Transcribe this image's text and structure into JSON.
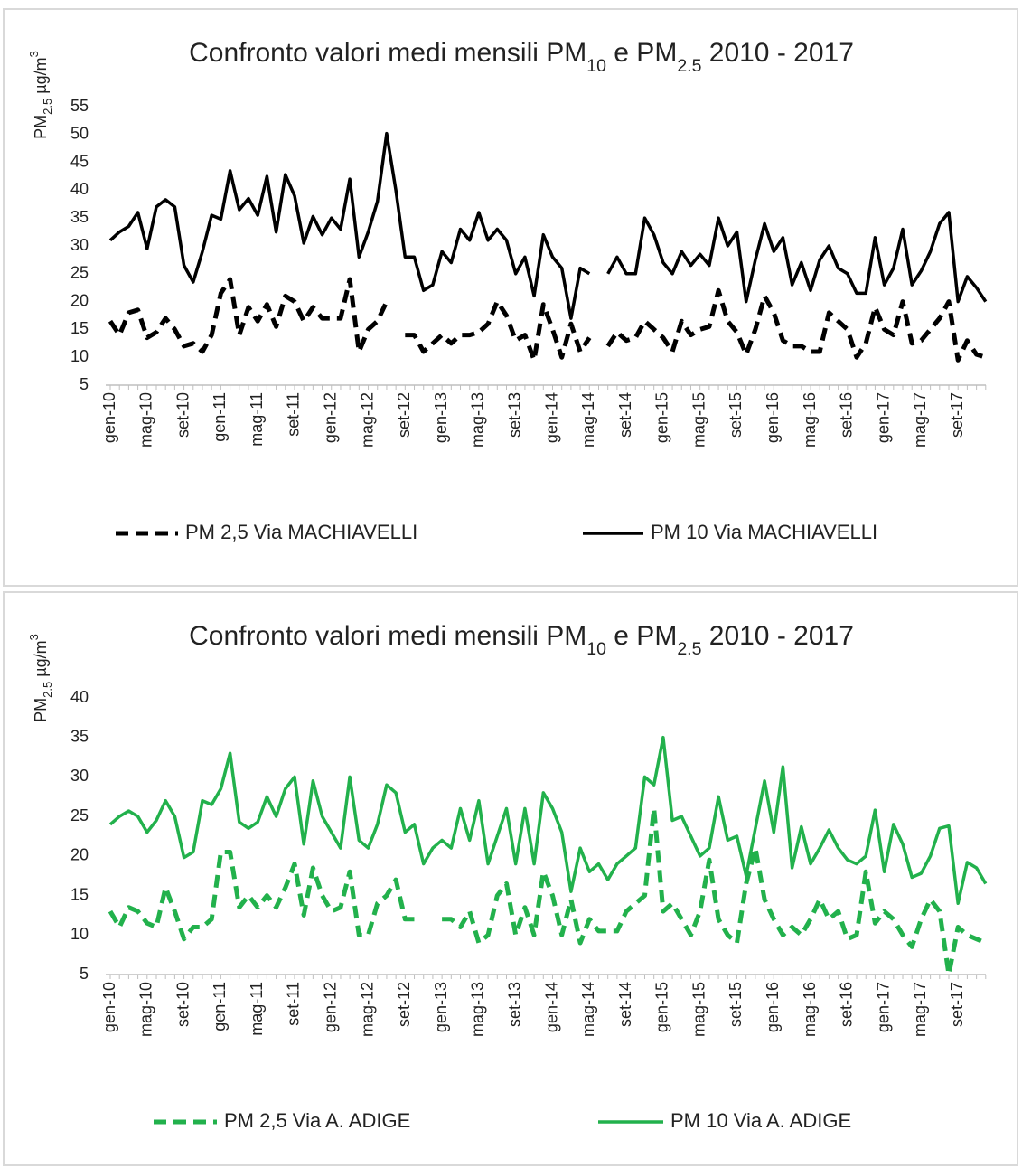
{
  "chart_data": [
    {
      "type": "line",
      "title": [
        {
          "text": "Confronto valori medi mensili PM"
        },
        {
          "text": "10",
          "sub": true
        },
        {
          "text": " e PM"
        },
        {
          "text": "2.5",
          "sub": true
        },
        {
          "text": " 2010 - 2017"
        }
      ],
      "y_label": [
        {
          "text": "PM"
        },
        {
          "text": "2.5",
          "sub": true
        },
        {
          "text": " µg/m"
        },
        {
          "text": "3",
          "sup": true
        }
      ],
      "categories": [
        "gen-10",
        null,
        null,
        null,
        "mag-10",
        null,
        null,
        null,
        "set-10",
        null,
        null,
        null,
        "gen-11",
        null,
        null,
        null,
        "mag-11",
        null,
        null,
        null,
        "set-11",
        null,
        null,
        null,
        "gen-12",
        null,
        null,
        null,
        "mag-12",
        null,
        null,
        null,
        "set-12",
        null,
        null,
        null,
        "gen-13",
        null,
        null,
        null,
        "mag-13",
        null,
        null,
        null,
        "set-13",
        null,
        null,
        null,
        "gen-14",
        null,
        null,
        null,
        "mag-14",
        null,
        null,
        null,
        "set-14",
        null,
        null,
        null,
        "gen-15",
        null,
        null,
        null,
        "mag-15",
        null,
        null,
        null,
        "set-15",
        null,
        null,
        null,
        "gen-16",
        null,
        null,
        null,
        "mag-16",
        null,
        null,
        null,
        "set-16",
        null,
        null,
        null,
        "gen-17",
        null,
        null,
        null,
        "mag-17",
        null,
        null,
        null,
        "set-17",
        null,
        null,
        null
      ],
      "ylim": [
        5,
        55
      ],
      "yticks": [
        5,
        10,
        15,
        20,
        25,
        30,
        35,
        40,
        45,
        50,
        55
      ],
      "legend": "bottom",
      "series": [
        {
          "name": "PM 2,5 Via MACHIAVELLI",
          "color": "#000000",
          "line_style": "dashed",
          "values": [
            16.5,
            14,
            18,
            18.5,
            13.5,
            14.5,
            17,
            15,
            12,
            12.5,
            11,
            14,
            21.5,
            24,
            14,
            19,
            16.5,
            19.5,
            15.5,
            21,
            20,
            16.5,
            19,
            17,
            17,
            17,
            24,
            11,
            15,
            16.5,
            20,
            null,
            14,
            14,
            11,
            12.5,
            14,
            12.5,
            14,
            14,
            14.5,
            16,
            20,
            17.5,
            13,
            14,
            9.5,
            19.5,
            15,
            10,
            16,
            11,
            13.5,
            null,
            12,
            14.5,
            13,
            13.5,
            16.5,
            15,
            13.5,
            11,
            16.5,
            14,
            15,
            15.5,
            22,
            16.5,
            14.5,
            10.5,
            15,
            21,
            18,
            13,
            12,
            12,
            11,
            11,
            18,
            16.5,
            15,
            10,
            12.5,
            19,
            15,
            14,
            20,
            12.5,
            13,
            15,
            17,
            20,
            9.5,
            13,
            10.5,
            10
          ]
        },
        {
          "name": "PM 10 Via MACHIAVELLI",
          "color": "#000000",
          "line_style": "solid",
          "values": [
            31,
            32.5,
            33.5,
            36,
            29.5,
            37,
            38.3,
            37,
            26.5,
            23.5,
            29,
            35.5,
            34.8,
            43.5,
            36.5,
            38.5,
            35.5,
            42.5,
            32.5,
            42.8,
            39,
            30.5,
            35.3,
            32,
            35,
            33,
            42,
            28,
            32.5,
            38,
            50.2,
            40,
            28,
            28,
            22,
            23,
            29,
            27,
            33,
            31,
            36,
            31,
            33,
            31,
            25,
            28,
            21,
            32,
            28,
            26,
            17,
            26,
            25,
            null,
            25,
            28,
            25,
            25,
            35,
            32,
            27,
            25,
            29,
            26.5,
            28.5,
            26.5,
            35,
            30,
            32.5,
            20,
            27.5,
            34,
            29,
            31.5,
            23,
            27,
            22,
            27.5,
            30,
            26,
            25,
            21.5,
            21.5,
            31.5,
            23,
            26,
            33,
            23,
            25.5,
            29,
            34,
            36,
            20,
            24.5,
            22.5,
            20
          ]
        }
      ]
    },
    {
      "type": "line",
      "title": [
        {
          "text": "Confronto valori medi mensili PM"
        },
        {
          "text": "10",
          "sub": true
        },
        {
          "text": " e PM"
        },
        {
          "text": "2.5",
          "sub": true
        },
        {
          "text": " 2010 - 2017"
        }
      ],
      "y_label": [
        {
          "text": "PM"
        },
        {
          "text": "2.5",
          "sub": true
        },
        {
          "text": " µg/m"
        },
        {
          "text": "3",
          "sup": true
        }
      ],
      "categories": [
        "gen-10",
        null,
        null,
        null,
        "mag-10",
        null,
        null,
        null,
        "set-10",
        null,
        null,
        null,
        "gen-11",
        null,
        null,
        null,
        "mag-11",
        null,
        null,
        null,
        "set-11",
        null,
        null,
        null,
        "gen-12",
        null,
        null,
        null,
        "mag-12",
        null,
        null,
        null,
        "set-12",
        null,
        null,
        null,
        "gen-13",
        null,
        null,
        null,
        "mag-13",
        null,
        null,
        null,
        "set-13",
        null,
        null,
        null,
        "gen-14",
        null,
        null,
        null,
        "mag-14",
        null,
        null,
        null,
        "set-14",
        null,
        null,
        null,
        "gen-15",
        null,
        null,
        null,
        "mag-15",
        null,
        null,
        null,
        "set-15",
        null,
        null,
        null,
        "gen-16",
        null,
        null,
        null,
        "mag-16",
        null,
        null,
        null,
        "set-16",
        null,
        null,
        null,
        "gen-17",
        null,
        null,
        null,
        "mag-17",
        null,
        null,
        null,
        "set-17",
        null,
        null,
        null
      ],
      "ylim": [
        5,
        40
      ],
      "yticks": [
        5,
        10,
        15,
        20,
        25,
        30,
        35,
        40
      ],
      "legend": "bottom",
      "series": [
        {
          "name": "PM 2,5 Via A. ADIGE",
          "color": "#22b14c",
          "line_style": "dashed",
          "values": [
            13,
            11,
            13.5,
            13,
            11.5,
            11,
            16,
            13,
            9.5,
            11,
            11,
            12,
            20.5,
            20.5,
            13.5,
            15,
            13.5,
            15,
            13.5,
            16,
            19,
            12.5,
            18.5,
            15,
            13,
            13.5,
            18,
            10,
            10,
            14,
            15,
            17,
            12,
            12,
            null,
            null,
            12,
            12,
            11,
            13,
            9,
            10,
            15,
            16.5,
            10,
            13.5,
            10,
            18,
            15,
            10,
            14.5,
            9,
            12,
            10.5,
            10.5,
            10.5,
            13,
            14,
            15,
            26,
            13,
            14,
            12,
            10,
            13,
            19.5,
            12,
            10,
            9,
            16.5,
            21,
            14.5,
            12,
            10,
            11,
            10,
            12,
            14.5,
            12,
            13,
            9.5,
            10,
            18,
            11.5,
            13,
            12,
            10,
            8.5,
            12,
            14.5,
            13,
            5,
            11,
            10,
            9.5,
            9
          ]
        },
        {
          "name": "PM 10 Via A. ADIGE",
          "color": "#22b14c",
          "line_style": "solid",
          "values": [
            24,
            25,
            25.7,
            25,
            23,
            24.5,
            27,
            25,
            19.8,
            20.5,
            27,
            26.5,
            28.5,
            33,
            24.3,
            23.5,
            24.3,
            27.5,
            25,
            28.5,
            30,
            21.5,
            29.5,
            25,
            23,
            21,
            30,
            22,
            21,
            24,
            29,
            28,
            23,
            24,
            19,
            21,
            22,
            21,
            26,
            22,
            27,
            19,
            22.5,
            26,
            19,
            26,
            19,
            28,
            26,
            23,
            15.5,
            21,
            18,
            19,
            17,
            19,
            20,
            21,
            30,
            29,
            35,
            24.5,
            25,
            22.5,
            20,
            21,
            27.5,
            22,
            22.5,
            17.5,
            23.5,
            29.5,
            23,
            31.3,
            18.5,
            23.7,
            19,
            21,
            23.3,
            21,
            19.5,
            19,
            20,
            25.8,
            18,
            24,
            21.5,
            17.3,
            17.8,
            20,
            23.5,
            23.8,
            14,
            19.2,
            18.5,
            16.5
          ]
        }
      ]
    }
  ]
}
